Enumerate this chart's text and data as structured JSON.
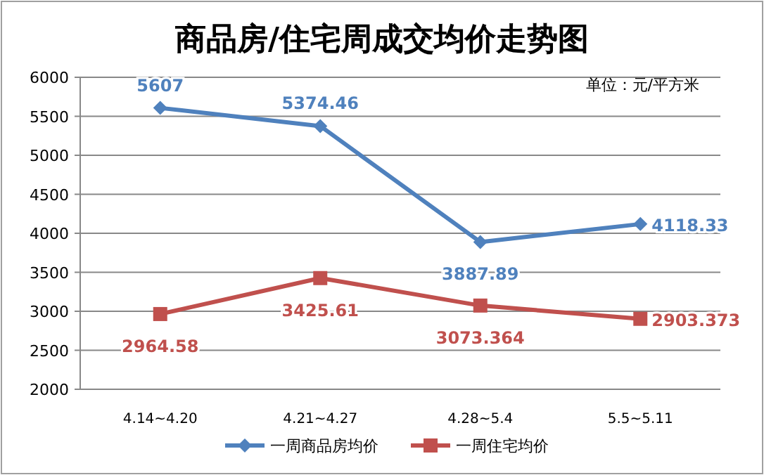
{
  "chart_data": {
    "type": "line",
    "title": "商品房/住宅周成交均价走势图",
    "annotations": [
      "单位：元/平方米"
    ],
    "categories": [
      "4.14~4.20",
      "4.21~4.27",
      "4.28~5.4",
      "5.5~5.11"
    ],
    "series": [
      {
        "name": "一周商品房均价",
        "color": "#4f81bd",
        "marker": "diamond",
        "values": [
          5607,
          5374.46,
          3887.89,
          4118.33
        ]
      },
      {
        "name": "一周住宅均价",
        "color": "#c0504d",
        "marker": "square",
        "values": [
          2964.58,
          3425.61,
          3073.364,
          2903.373
        ]
      }
    ],
    "ylim": [
      2000,
      6000
    ],
    "yticks": [
      2000,
      2500,
      3000,
      3500,
      4000,
      4500,
      5000,
      5500,
      6000
    ],
    "grid": "y",
    "legend": "bottom",
    "data_labels": true
  }
}
